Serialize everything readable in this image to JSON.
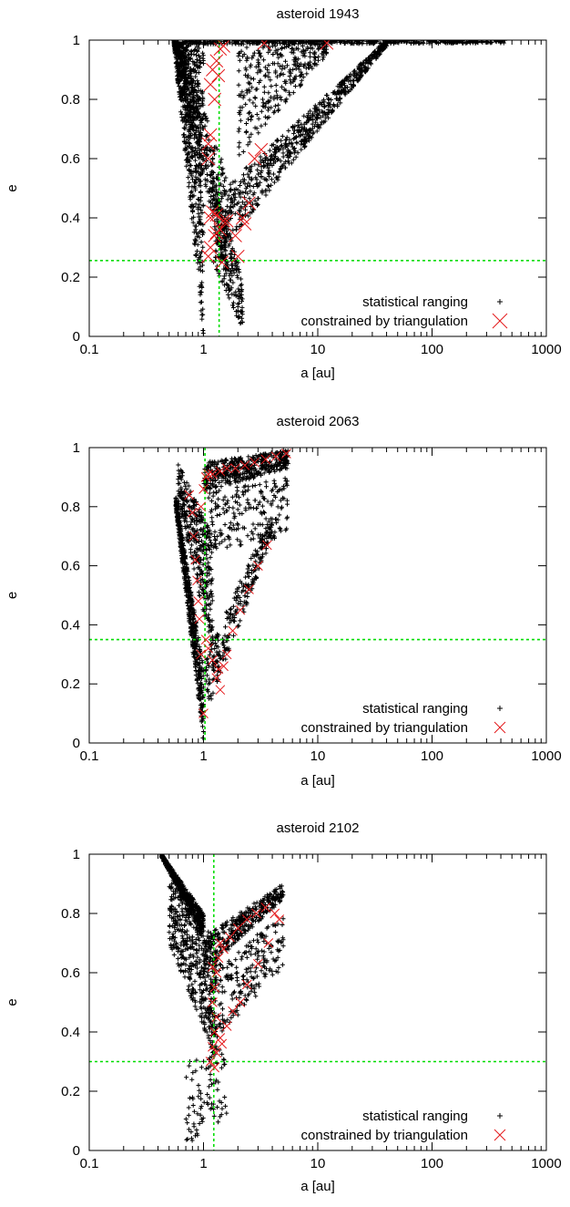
{
  "colors": {
    "ranging": "#000000",
    "triangulation": "#e41a1c",
    "reference": "#00dd00"
  },
  "chart_data": [
    {
      "type": "scatter",
      "title": "asteroid 1943",
      "xlabel": "a [au]",
      "ylabel": "e",
      "xscale": "log",
      "xlim": [
        0.1,
        1000
      ],
      "ylim": [
        0,
        1
      ],
      "x_ticks": [
        0.1,
        1,
        10,
        100,
        1000
      ],
      "x_tick_labels": [
        "0.1",
        "1",
        "10",
        "100",
        "1000"
      ],
      "y_ticks": [
        0,
        0.2,
        0.4,
        0.6,
        0.8,
        1
      ],
      "y_tick_labels": [
        "0",
        "0.2",
        "0.4",
        "0.6",
        "0.8",
        "1"
      ],
      "grid": false,
      "legend_position": "bottom-right",
      "reference_lines": {
        "x": 1.37,
        "y": 0.256
      },
      "series": [
        {
          "name": "statistical ranging",
          "marker": "plus",
          "bands": [
            {
              "a": [
                0.55,
                1.0
              ],
              "e_from": [
                0.99,
                0.0
              ],
              "e_to": [
                1.0,
                1.0
              ],
              "n": 700
            },
            {
              "a": [
                0.6,
                1.6
              ],
              "e_from": [
                0.9,
                0.2
              ],
              "e_to": [
                1.0,
                0.55
              ],
              "n": 350
            },
            {
              "a": [
                1.2,
                2.2
              ],
              "e_from": [
                0.25,
                0.02
              ],
              "e_to": [
                0.55,
                0.2
              ],
              "n": 220
            },
            {
              "a": [
                1.5,
                40
              ],
              "e_from": [
                0.3,
                0.98
              ],
              "e_to": [
                0.5,
                1.0
              ],
              "n": 650
            },
            {
              "a": [
                2.0,
                12
              ],
              "e_from": [
                0.6,
                0.95
              ],
              "e_to": [
                1.0,
                1.0
              ],
              "n": 320
            },
            {
              "a": [
                0.55,
                450
              ],
              "e_from": [
                0.985,
                0.99
              ],
              "e_to": [
                1.0,
                1.0
              ],
              "n": 420
            }
          ]
        },
        {
          "name": "constrained by triangulation",
          "marker": "cross",
          "points": [
            [
              1.1,
              0.27
            ],
            [
              1.15,
              0.3
            ],
            [
              1.25,
              0.34
            ],
            [
              1.3,
              0.35
            ],
            [
              1.4,
              0.36
            ],
            [
              1.15,
              0.4
            ],
            [
              1.2,
              0.42
            ],
            [
              1.3,
              0.41
            ],
            [
              1.5,
              0.39
            ],
            [
              1.6,
              0.39
            ],
            [
              2.2,
              0.4
            ],
            [
              2.3,
              0.38
            ],
            [
              1.1,
              0.6
            ],
            [
              1.15,
              0.68
            ],
            [
              1.1,
              0.65
            ],
            [
              1.15,
              0.85
            ],
            [
              1.2,
              0.9
            ],
            [
              1.3,
              0.93
            ],
            [
              1.4,
              0.97
            ],
            [
              1.5,
              0.98
            ],
            [
              1.35,
              0.88
            ],
            [
              1.25,
              0.8
            ],
            [
              2.5,
              0.45
            ],
            [
              2.8,
              0.6
            ],
            [
              3.2,
              0.63
            ],
            [
              3.4,
              0.99
            ],
            [
              12.0,
              0.99
            ],
            [
              1.45,
              0.25
            ],
            [
              1.9,
              0.34
            ],
            [
              2.0,
              0.27
            ]
          ]
        }
      ]
    },
    {
      "type": "scatter",
      "title": "asteroid 2063",
      "xlabel": "a [au]",
      "ylabel": "e",
      "xscale": "log",
      "xlim": [
        0.1,
        1000
      ],
      "ylim": [
        0,
        1
      ],
      "x_ticks": [
        0.1,
        1,
        10,
        100,
        1000
      ],
      "x_tick_labels": [
        "0.1",
        "1",
        "10",
        "100",
        "1000"
      ],
      "y_ticks": [
        0,
        0.2,
        0.4,
        0.6,
        0.8,
        1
      ],
      "y_tick_labels": [
        "0",
        "0.2",
        "0.4",
        "0.6",
        "0.8",
        "1"
      ],
      "grid": false,
      "legend_position": "bottom-right",
      "reference_lines": {
        "x": 1.03,
        "y": 0.35
      },
      "series": [
        {
          "name": "statistical ranging",
          "marker": "plus",
          "bands": [
            {
              "a": [
                0.57,
                1.0
              ],
              "e_from": [
                0.8,
                0.0
              ],
              "e_to": [
                0.84,
                0.25
              ],
              "n": 550
            },
            {
              "a": [
                0.6,
                1.2
              ],
              "e_from": [
                0.82,
                0.3
              ],
              "e_to": [
                0.95,
                0.7
              ],
              "n": 350
            },
            {
              "a": [
                1.0,
                5.5
              ],
              "e_from": [
                0.85,
                0.93
              ],
              "e_to": [
                0.95,
                0.99
              ],
              "n": 420
            },
            {
              "a": [
                1.1,
                5.5
              ],
              "e_from": [
                0.65,
                0.7
              ],
              "e_to": [
                0.85,
                0.9
              ],
              "n": 200
            },
            {
              "a": [
                1.05,
                4.0
              ],
              "e_from": [
                0.1,
                0.7
              ],
              "e_to": [
                0.3,
                0.78
              ],
              "n": 250
            }
          ]
        },
        {
          "name": "constrained by triangulation",
          "marker": "cross",
          "points": [
            [
              0.75,
              0.84
            ],
            [
              0.8,
              0.78
            ],
            [
              0.82,
              0.7
            ],
            [
              0.85,
              0.62
            ],
            [
              0.88,
              0.55
            ],
            [
              0.9,
              0.48
            ],
            [
              0.92,
              0.42
            ],
            [
              0.95,
              0.8
            ],
            [
              1.0,
              0.86
            ],
            [
              1.05,
              0.9
            ],
            [
              1.1,
              0.91
            ],
            [
              1.2,
              0.91
            ],
            [
              1.4,
              0.92
            ],
            [
              1.6,
              0.93
            ],
            [
              1.9,
              0.93
            ],
            [
              2.3,
              0.94
            ],
            [
              2.8,
              0.95
            ],
            [
              3.5,
              0.96
            ],
            [
              4.3,
              0.97
            ],
            [
              5.3,
              0.98
            ],
            [
              1.1,
              0.32
            ],
            [
              1.2,
              0.28
            ],
            [
              1.3,
              0.22
            ],
            [
              1.4,
              0.18
            ],
            [
              1.35,
              0.25
            ],
            [
              1.5,
              0.26
            ],
            [
              1.6,
              0.3
            ],
            [
              1.8,
              0.38
            ],
            [
              2.1,
              0.45
            ],
            [
              2.5,
              0.52
            ],
            [
              3.0,
              0.6
            ],
            [
              3.6,
              0.67
            ],
            [
              1.0,
              0.1
            ],
            [
              1.05,
              0.35
            ],
            [
              0.95,
              0.3
            ]
          ]
        }
      ]
    },
    {
      "type": "scatter",
      "title": "asteroid 2102",
      "xlabel": "a [au]",
      "ylabel": "e",
      "xscale": "log",
      "xlim": [
        0.1,
        1000
      ],
      "ylim": [
        0,
        1
      ],
      "x_ticks": [
        0.1,
        1,
        10,
        100,
        1000
      ],
      "x_tick_labels": [
        "0.1",
        "1",
        "10",
        "100",
        "1000"
      ],
      "y_ticks": [
        0,
        0.2,
        0.4,
        0.6,
        0.8,
        1
      ],
      "y_tick_labels": [
        "0",
        "0.2",
        "0.4",
        "0.6",
        "0.8",
        "1"
      ],
      "grid": false,
      "legend_position": "bottom-right",
      "reference_lines": {
        "x": 1.23,
        "y": 0.3
      },
      "series": [
        {
          "name": "statistical ranging",
          "marker": "plus",
          "bands": [
            {
              "a": [
                0.43,
                1.0
              ],
              "e_from": [
                0.99,
                0.72
              ],
              "e_to": [
                1.0,
                0.8
              ],
              "n": 500
            },
            {
              "a": [
                0.5,
                1.3
              ],
              "e_from": [
                0.7,
                0.3
              ],
              "e_to": [
                0.95,
                0.7
              ],
              "n": 450
            },
            {
              "a": [
                1.0,
                5.0
              ],
              "e_from": [
                0.6,
                0.85
              ],
              "e_to": [
                0.72,
                0.9
              ],
              "n": 350
            },
            {
              "a": [
                1.1,
                5.0
              ],
              "e_from": [
                0.35,
                0.62
              ],
              "e_to": [
                0.6,
                0.8
              ],
              "n": 220
            },
            {
              "a": [
                0.7,
                1.6
              ],
              "e_from": [
                0.02,
                0.1
              ],
              "e_to": [
                0.3,
                0.35
              ],
              "n": 90
            }
          ]
        },
        {
          "name": "constrained by triangulation",
          "marker": "cross",
          "points": [
            [
              1.15,
              0.3
            ],
            [
              1.2,
              0.35
            ],
            [
              1.25,
              0.4
            ],
            [
              1.3,
              0.45
            ],
            [
              1.2,
              0.5
            ],
            [
              1.25,
              0.55
            ],
            [
              1.3,
              0.6
            ],
            [
              1.35,
              0.65
            ],
            [
              1.4,
              0.7
            ],
            [
              1.2,
              0.62
            ],
            [
              1.5,
              0.68
            ],
            [
              1.7,
              0.72
            ],
            [
              2.0,
              0.75
            ],
            [
              2.4,
              0.78
            ],
            [
              2.9,
              0.8
            ],
            [
              3.5,
              0.82
            ],
            [
              4.2,
              0.8
            ],
            [
              4.6,
              0.78
            ],
            [
              1.4,
              0.38
            ],
            [
              1.6,
              0.42
            ],
            [
              1.8,
              0.47
            ],
            [
              2.1,
              0.5
            ],
            [
              2.4,
              0.56
            ],
            [
              3.0,
              0.63
            ],
            [
              3.7,
              0.7
            ],
            [
              1.25,
              0.28
            ],
            [
              1.3,
              0.33
            ],
            [
              1.45,
              0.36
            ]
          ]
        }
      ]
    }
  ]
}
